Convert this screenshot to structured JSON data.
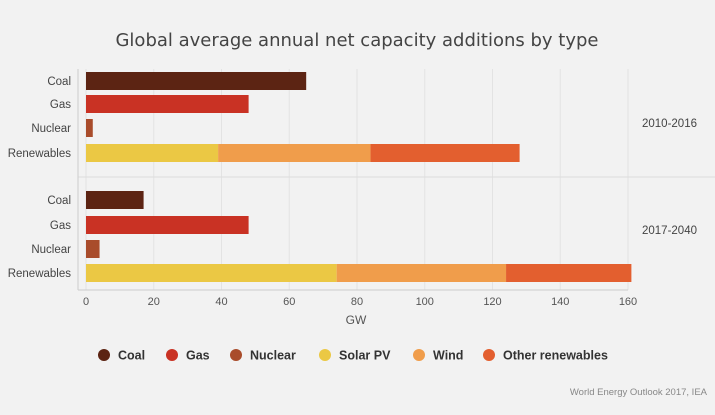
{
  "chart_data": {
    "type": "bar",
    "orientation": "horizontal",
    "stacked": true,
    "title": "Global average annual net capacity additions by type",
    "xlabel": "GW",
    "xlim": [
      0,
      160
    ],
    "xticks": [
      0,
      20,
      40,
      60,
      80,
      100,
      120,
      140,
      160
    ],
    "legend_position": "bottom",
    "series": [
      {
        "name": "Coal",
        "color": "#5c2413"
      },
      {
        "name": "Gas",
        "color": "#c93224"
      },
      {
        "name": "Nuclear",
        "color": "#a94c2b"
      },
      {
        "name": "Solar PV",
        "color": "#ebc844"
      },
      {
        "name": "Wind",
        "color": "#f09d4b"
      },
      {
        "name": "Other renewables",
        "color": "#e35f2f"
      }
    ],
    "groups": [
      {
        "period": "2010-2016",
        "rows": [
          {
            "label": "Coal",
            "segments": [
              {
                "series": "Coal",
                "value": 65
              }
            ]
          },
          {
            "label": "Gas",
            "segments": [
              {
                "series": "Gas",
                "value": 48
              }
            ]
          },
          {
            "label": "Nuclear",
            "segments": [
              {
                "series": "Nuclear",
                "value": 2
              }
            ]
          },
          {
            "label": "Renewables",
            "segments": [
              {
                "series": "Solar PV",
                "value": 39
              },
              {
                "series": "Wind",
                "value": 45
              },
              {
                "series": "Other renewables",
                "value": 44
              }
            ]
          }
        ]
      },
      {
        "period": "2017-2040",
        "rows": [
          {
            "label": "Coal",
            "segments": [
              {
                "series": "Coal",
                "value": 17
              }
            ]
          },
          {
            "label": "Gas",
            "segments": [
              {
                "series": "Gas",
                "value": 48
              }
            ]
          },
          {
            "label": "Nuclear",
            "segments": [
              {
                "series": "Nuclear",
                "value": 4
              }
            ]
          },
          {
            "label": "Renewables",
            "segments": [
              {
                "series": "Solar PV",
                "value": 74
              },
              {
                "series": "Wind",
                "value": 50
              },
              {
                "series": "Other renewables",
                "value": 37
              }
            ]
          }
        ]
      }
    ]
  },
  "source": "World Energy Outlook 2017, IEA"
}
